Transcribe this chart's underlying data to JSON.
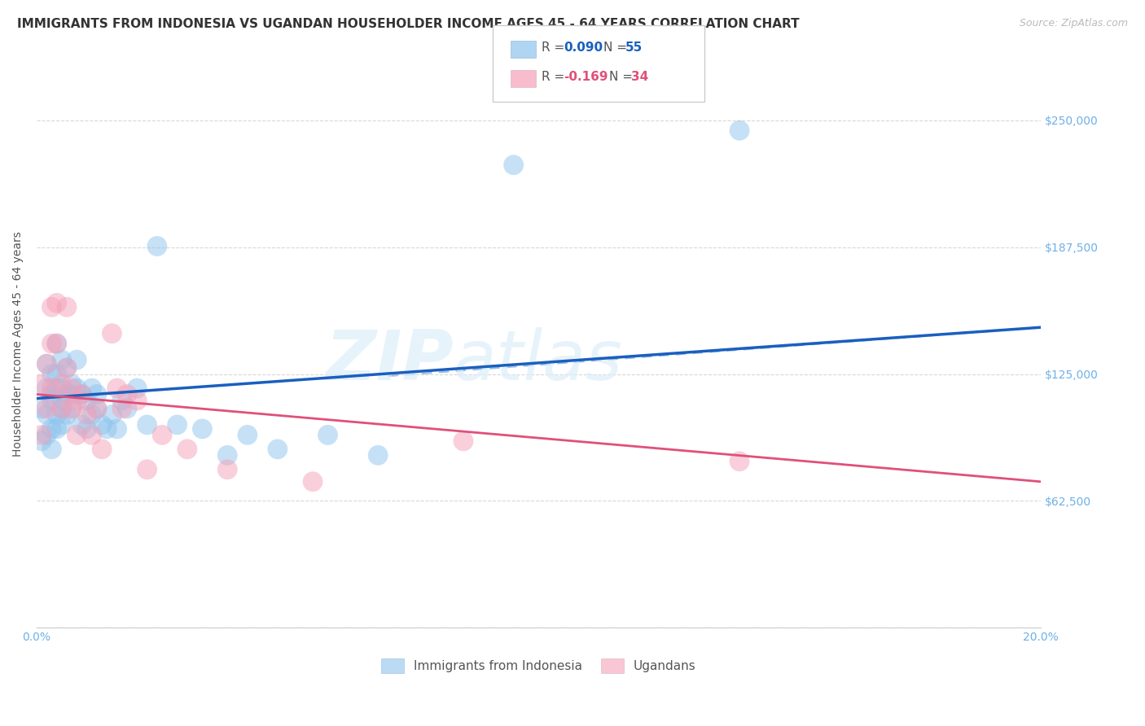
{
  "title": "IMMIGRANTS FROM INDONESIA VS UGANDAN HOUSEHOLDER INCOME AGES 45 - 64 YEARS CORRELATION CHART",
  "source": "Source: ZipAtlas.com",
  "ylabel": "Householder Income Ages 45 - 64 years",
  "xlim": [
    0.0,
    0.2
  ],
  "ylim": [
    0,
    280000
  ],
  "yticks": [
    0,
    62500,
    125000,
    187500,
    250000
  ],
  "ytick_labels": [
    "",
    "$62,500",
    "$125,000",
    "$187,500",
    "$250,000"
  ],
  "xticks": [
    0.0,
    0.05,
    0.1,
    0.15,
    0.2
  ],
  "xtick_labels": [
    "0.0%",
    "",
    "",
    "",
    "20.0%"
  ],
  "color_indonesia": "#8EC4EE",
  "color_uganda": "#F4A0B8",
  "color_line_indonesia": "#1A5FBF",
  "color_line_uganda": "#E0507A",
  "color_dashed": "#90B8E0",
  "color_ytick": "#6EB0E8",
  "color_xtick": "#6EB0E8",
  "background_color": "#ffffff",
  "grid_color": "#d8d8d8",
  "title_fontsize": 11,
  "source_fontsize": 9,
  "label_fontsize": 10,
  "tick_fontsize": 10,
  "indonesia_line_x0": 0.0,
  "indonesia_line_y0": 113000,
  "indonesia_line_x1": 0.2,
  "indonesia_line_y1": 148000,
  "uganda_line_x0": 0.0,
  "uganda_line_y0": 115000,
  "uganda_line_x1": 0.2,
  "uganda_line_y1": 72000,
  "dashed_line_x0": 0.07,
  "dashed_line_y0": 124000,
  "dashed_line_x1": 0.2,
  "dashed_line_y1": 148000,
  "indonesia_x": [
    0.001,
    0.001,
    0.002,
    0.002,
    0.002,
    0.002,
    0.003,
    0.003,
    0.003,
    0.003,
    0.003,
    0.004,
    0.004,
    0.004,
    0.004,
    0.004,
    0.005,
    0.005,
    0.005,
    0.005,
    0.005,
    0.006,
    0.006,
    0.006,
    0.007,
    0.007,
    0.007,
    0.008,
    0.008,
    0.009,
    0.009,
    0.01,
    0.01,
    0.011,
    0.011,
    0.012,
    0.012,
    0.013,
    0.014,
    0.015,
    0.016,
    0.017,
    0.018,
    0.02,
    0.022,
    0.024,
    0.028,
    0.033,
    0.038,
    0.042,
    0.048,
    0.058,
    0.068,
    0.095,
    0.14
  ],
  "indonesia_y": [
    108000,
    92000,
    118000,
    105000,
    95000,
    130000,
    125000,
    112000,
    98000,
    115000,
    88000,
    140000,
    118000,
    105000,
    125000,
    98000,
    132000,
    112000,
    100000,
    118000,
    108000,
    115000,
    128000,
    105000,
    120000,
    108000,
    115000,
    132000,
    118000,
    115000,
    100000,
    112000,
    98000,
    118000,
    105000,
    108000,
    115000,
    100000,
    98000,
    105000,
    98000,
    112000,
    108000,
    118000,
    100000,
    188000,
    100000,
    98000,
    85000,
    95000,
    88000,
    95000,
    85000,
    228000,
    245000
  ],
  "uganda_x": [
    0.001,
    0.001,
    0.002,
    0.002,
    0.003,
    0.003,
    0.003,
    0.004,
    0.004,
    0.005,
    0.005,
    0.006,
    0.006,
    0.007,
    0.007,
    0.008,
    0.008,
    0.009,
    0.01,
    0.011,
    0.012,
    0.013,
    0.015,
    0.016,
    0.017,
    0.018,
    0.02,
    0.022,
    0.025,
    0.03,
    0.038,
    0.055,
    0.085,
    0.14
  ],
  "uganda_y": [
    120000,
    95000,
    130000,
    108000,
    158000,
    140000,
    118000,
    160000,
    140000,
    120000,
    108000,
    158000,
    128000,
    118000,
    108000,
    112000,
    95000,
    115000,
    105000,
    95000,
    108000,
    88000,
    145000,
    118000,
    108000,
    115000,
    112000,
    78000,
    95000,
    88000,
    78000,
    72000,
    92000,
    82000
  ]
}
